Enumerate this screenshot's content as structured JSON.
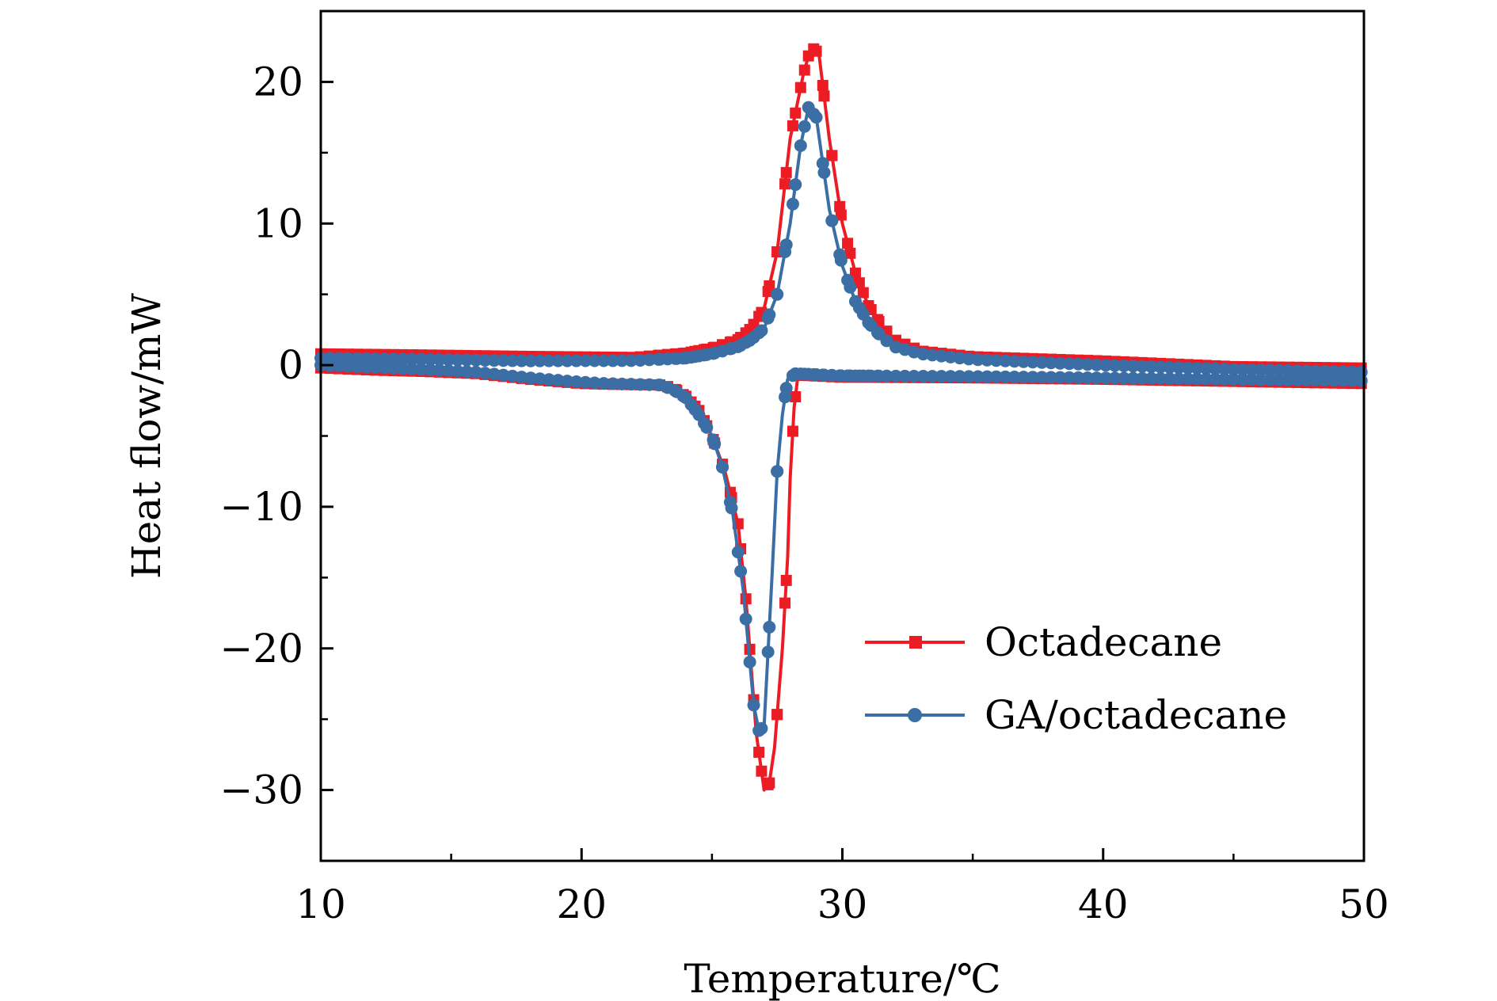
{
  "chart_data": {
    "type": "line",
    "title": "",
    "xlabel": "Temperature/℃",
    "ylabel": "Heat flow/mW",
    "xlim": [
      10,
      50
    ],
    "ylim": [
      -35,
      25
    ],
    "x_ticks": [
      "10",
      "20",
      "30",
      "40",
      "50"
    ],
    "y_ticks": [
      "−30",
      "−20",
      "−10",
      "0",
      "10",
      "20"
    ],
    "legend_position": "bottom-right",
    "grid": false,
    "colors": {
      "Octadecane": "#ec1c24",
      "GA/octadecane": "#3b6ea5"
    },
    "series": [
      {
        "name": "Octadecane",
        "marker": "square",
        "heating": [
          [
            10,
            0.8
          ],
          [
            14,
            0.72
          ],
          [
            18,
            0.62
          ],
          [
            22,
            0.55
          ],
          [
            24,
            0.85
          ],
          [
            25,
            1.2
          ],
          [
            26,
            1.8
          ],
          [
            26.5,
            2.6
          ],
          [
            27,
            4.0
          ],
          [
            27.5,
            8.0
          ],
          [
            28,
            16.0
          ],
          [
            28.5,
            20.5
          ],
          [
            28.8,
            22.5
          ],
          [
            29.1,
            22.0
          ],
          [
            29.5,
            16.0
          ],
          [
            30,
            10.0
          ],
          [
            30.5,
            6.5
          ],
          [
            31,
            4.2
          ],
          [
            31.5,
            2.8
          ],
          [
            32,
            1.8
          ],
          [
            33,
            1.0
          ],
          [
            35,
            0.6
          ],
          [
            40,
            0.3
          ],
          [
            45,
            -0.1
          ],
          [
            50,
            -0.2
          ]
        ],
        "cooling": [
          [
            50,
            -1.3
          ],
          [
            45,
            -1.15
          ],
          [
            40,
            -1.0
          ],
          [
            35,
            -0.9
          ],
          [
            30,
            -0.85
          ],
          [
            28.3,
            -0.7
          ],
          [
            28.15,
            -3.0
          ],
          [
            28,
            -8.0
          ],
          [
            27.9,
            -13.6
          ],
          [
            27.7,
            -20.0
          ],
          [
            27.4,
            -27.0
          ],
          [
            27.2,
            -29.5
          ],
          [
            27.0,
            -30.0
          ],
          [
            26.7,
            -26.0
          ],
          [
            26.3,
            -16.5
          ],
          [
            26,
            -11.2
          ],
          [
            25.5,
            -7.5
          ],
          [
            25,
            -5.0
          ],
          [
            24.5,
            -3.2
          ],
          [
            24,
            -2.2
          ],
          [
            23.5,
            -1.6
          ],
          [
            23,
            -1.4
          ],
          [
            21,
            -1.35
          ],
          [
            20,
            -1.3
          ],
          [
            18,
            -1.0
          ],
          [
            16,
            -0.6
          ],
          [
            14,
            -0.45
          ],
          [
            12,
            -0.35
          ],
          [
            10,
            -0.2
          ]
        ]
      },
      {
        "name": "GA/octadecane",
        "marker": "circle",
        "heating": [
          [
            10,
            0.5
          ],
          [
            14,
            0.4
          ],
          [
            18,
            0.3
          ],
          [
            22,
            0.32
          ],
          [
            24,
            0.5
          ],
          [
            25,
            0.8
          ],
          [
            26,
            1.3
          ],
          [
            26.5,
            1.8
          ],
          [
            27,
            2.6
          ],
          [
            27.5,
            5.0
          ],
          [
            28,
            10.0
          ],
          [
            28.4,
            15.5
          ],
          [
            28.7,
            18.2
          ],
          [
            29,
            17.5
          ],
          [
            29.5,
            11.0
          ],
          [
            30,
            7.0
          ],
          [
            30.5,
            4.5
          ],
          [
            31,
            3.0
          ],
          [
            31.5,
            2.0
          ],
          [
            32,
            1.3
          ],
          [
            33,
            0.8
          ],
          [
            35,
            0.4
          ],
          [
            40,
            0.0
          ],
          [
            45,
            -0.3
          ],
          [
            50,
            -0.5
          ]
        ],
        "cooling": [
          [
            50,
            -1.1
          ],
          [
            45,
            -1.0
          ],
          [
            40,
            -0.9
          ],
          [
            35,
            -0.8
          ],
          [
            30,
            -0.75
          ],
          [
            28.2,
            -0.6
          ],
          [
            27.9,
            -1.0
          ],
          [
            27.7,
            -3.5
          ],
          [
            27.5,
            -7.5
          ],
          [
            27.3,
            -15.0
          ],
          [
            27.1,
            -22.0
          ],
          [
            27.0,
            -25.5
          ],
          [
            26.8,
            -25.8
          ],
          [
            26.6,
            -24.0
          ],
          [
            26.2,
            -15.9
          ],
          [
            25.8,
            -10.5
          ],
          [
            25.4,
            -7.2
          ],
          [
            25,
            -5.0
          ],
          [
            24.5,
            -3.5
          ],
          [
            24,
            -2.3
          ],
          [
            23.5,
            -1.7
          ],
          [
            23,
            -1.4
          ],
          [
            21,
            -1.3
          ],
          [
            20,
            -1.2
          ],
          [
            18,
            -0.9
          ],
          [
            16,
            -0.5
          ],
          [
            14,
            -0.3
          ],
          [
            12,
            -0.15
          ],
          [
            10,
            0.0
          ]
        ]
      }
    ]
  }
}
